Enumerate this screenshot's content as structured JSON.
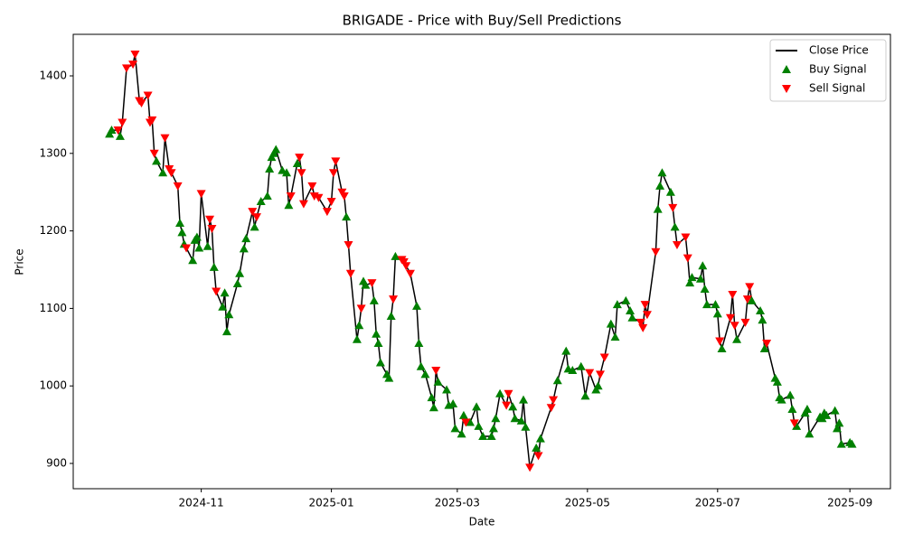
{
  "chart_data": {
    "type": "line",
    "title": "BRIGADE - Price with Buy/Sell Predictions",
    "x_label": "Date",
    "y_label": "Price",
    "xlim": [
      "2024-09-02",
      "2025-09-20"
    ],
    "xticks": [
      {
        "value": "2024-11-01",
        "label": "2024-11"
      },
      {
        "value": "2025-01-01",
        "label": "2025-01"
      },
      {
        "value": "2025-03-01",
        "label": "2025-03"
      },
      {
        "value": "2025-05-01",
        "label": "2025-05"
      },
      {
        "value": "2025-07-01",
        "label": "2025-07"
      },
      {
        "value": "2025-09-01",
        "label": "2025-09"
      }
    ],
    "ylim": [
      867.4,
      1453.6
    ],
    "yticks": [
      900,
      1000,
      1100,
      1200,
      1300,
      1400
    ],
    "grid": false,
    "legend": "upper right",
    "series": [
      {
        "name": "Close Price",
        "color": "#000000",
        "marker": "none",
        "x": [
          "2024-09-19",
          "2024-09-20",
          "2024-09-23",
          "2024-09-24",
          "2024-09-25",
          "2024-09-27",
          "2024-09-30",
          "2024-10-01",
          "2024-10-03",
          "2024-10-04",
          "2024-10-07",
          "2024-10-08",
          "2024-10-09",
          "2024-10-10",
          "2024-10-11",
          "2024-10-14",
          "2024-10-15",
          "2024-10-17",
          "2024-10-18",
          "2024-10-21",
          "2024-10-22",
          "2024-10-23",
          "2024-10-24",
          "2024-10-25",
          "2024-10-28",
          "2024-10-29",
          "2024-10-30",
          "2024-10-31",
          "2024-11-01",
          "2024-11-04",
          "2024-11-05",
          "2024-11-06",
          "2024-11-07",
          "2024-11-08",
          "2024-11-11",
          "2024-11-12",
          "2024-11-13",
          "2024-11-14",
          "2024-11-18",
          "2024-11-19",
          "2024-11-21",
          "2024-11-22",
          "2024-11-25",
          "2024-11-26",
          "2024-11-27",
          "2024-11-29",
          "2024-12-02",
          "2024-12-03",
          "2024-12-04",
          "2024-12-05",
          "2024-12-06",
          "2024-12-09",
          "2024-12-11",
          "2024-12-12",
          "2024-12-13",
          "2024-12-16",
          "2024-12-17",
          "2024-12-18",
          "2024-12-19",
          "2024-12-23",
          "2024-12-24",
          "2024-12-26",
          "2024-12-30",
          "2025-01-01",
          "2025-01-02",
          "2025-01-03",
          "2025-01-06",
          "2025-01-07",
          "2025-01-08",
          "2025-01-09",
          "2025-01-10",
          "2025-01-13",
          "2025-01-14",
          "2025-01-15",
          "2025-01-16",
          "2025-01-17",
          "2025-01-20",
          "2025-01-21",
          "2025-01-22",
          "2025-01-23",
          "2025-01-24",
          "2025-01-27",
          "2025-01-28",
          "2025-01-29",
          "2025-01-30",
          "2025-01-31",
          "2025-02-03",
          "2025-02-04",
          "2025-02-05",
          "2025-02-07",
          "2025-02-10",
          "2025-02-11",
          "2025-02-12",
          "2025-02-14",
          "2025-02-17",
          "2025-02-18",
          "2025-02-19",
          "2025-02-20",
          "2025-02-24",
          "2025-02-25",
          "2025-02-27",
          "2025-02-28",
          "2025-03-03",
          "2025-03-04",
          "2025-03-05",
          "2025-03-07",
          "2025-03-10",
          "2025-03-11",
          "2025-03-13",
          "2025-03-17",
          "2025-03-18",
          "2025-03-19",
          "2025-03-21",
          "2025-03-24",
          "2025-03-25",
          "2025-03-27",
          "2025-03-28",
          "2025-03-31",
          "2025-04-01",
          "2025-04-02",
          "2025-04-04",
          "2025-04-07",
          "2025-04-08",
          "2025-04-09",
          "2025-04-14",
          "2025-04-15",
          "2025-04-17",
          "2025-04-21",
          "2025-04-22",
          "2025-04-24",
          "2025-04-28",
          "2025-04-30",
          "2025-05-02",
          "2025-05-05",
          "2025-05-06",
          "2025-05-07",
          "2025-05-09",
          "2025-05-12",
          "2025-05-14",
          "2025-05-15",
          "2025-05-19",
          "2025-05-21",
          "2025-05-22",
          "2025-05-26",
          "2025-05-27",
          "2025-05-28",
          "2025-05-29",
          "2025-06-02",
          "2025-06-03",
          "2025-06-04",
          "2025-06-05",
          "2025-06-09",
          "2025-06-10",
          "2025-06-11",
          "2025-06-12",
          "2025-06-16",
          "2025-06-17",
          "2025-06-18",
          "2025-06-19",
          "2025-06-23",
          "2025-06-24",
          "2025-06-25",
          "2025-06-26",
          "2025-06-30",
          "2025-07-01",
          "2025-07-02",
          "2025-07-03",
          "2025-07-07",
          "2025-07-08",
          "2025-07-09",
          "2025-07-10",
          "2025-07-14",
          "2025-07-15",
          "2025-07-16",
          "2025-07-17",
          "2025-07-21",
          "2025-07-22",
          "2025-07-23",
          "2025-07-24",
          "2025-07-28",
          "2025-07-29",
          "2025-07-30",
          "2025-07-31",
          "2025-08-04",
          "2025-08-05",
          "2025-08-06",
          "2025-08-07",
          "2025-08-11",
          "2025-08-12",
          "2025-08-13",
          "2025-08-18",
          "2025-08-19",
          "2025-08-20",
          "2025-08-21",
          "2025-08-25",
          "2025-08-26",
          "2025-08-27",
          "2025-08-28",
          "2025-09-01",
          "2025-09-02"
        ],
        "values": [
          1325,
          1330,
          1330,
          1322,
          1340,
          1410,
          1415,
          1428,
          1368,
          1365,
          1375,
          1340,
          1343,
          1300,
          1290,
          1275,
          1320,
          1280,
          1275,
          1258,
          1210,
          1198,
          1183,
          1178,
          1162,
          1188,
          1192,
          1178,
          1248,
          1180,
          1215,
          1203,
          1153,
          1122,
          1102,
          1120,
          1070,
          1092,
          1132,
          1145,
          1177,
          1190,
          1225,
          1205,
          1218,
          1238,
          1245,
          1280,
          1295,
          1300,
          1305,
          1278,
          1275,
          1233,
          1245,
          1287,
          1295,
          1275,
          1235,
          1258,
          1245,
          1243,
          1225,
          1238,
          1275,
          1290,
          1250,
          1245,
          1218,
          1182,
          1145,
          1060,
          1078,
          1100,
          1135,
          1130,
          1133,
          1110,
          1067,
          1055,
          1030,
          1015,
          1010,
          1090,
          1112,
          1167,
          1163,
          1160,
          1155,
          1145,
          1103,
          1055,
          1025,
          1015,
          985,
          972,
          1020,
          1005,
          995,
          975,
          977,
          945,
          938,
          962,
          953,
          953,
          973,
          948,
          935,
          935,
          945,
          958,
          990,
          975,
          990,
          973,
          958,
          955,
          982,
          947,
          895,
          920,
          910,
          932,
          972,
          982,
          1007,
          1045,
          1022,
          1020,
          1025,
          987,
          1017,
          995,
          1000,
          1015,
          1037,
          1080,
          1063,
          1105,
          1110,
          1097,
          1088,
          1082,
          1075,
          1105,
          1092,
          1173,
          1228,
          1258,
          1275,
          1250,
          1230,
          1205,
          1182,
          1192,
          1165,
          1133,
          1140,
          1138,
          1155,
          1125,
          1105,
          1105,
          1093,
          1058,
          1048,
          1088,
          1118,
          1078,
          1060,
          1082,
          1112,
          1128,
          1110,
          1097,
          1085,
          1048,
          1055,
          1010,
          1005,
          985,
          982,
          988,
          970,
          952,
          948,
          965,
          970,
          938,
          960,
          958,
          965,
          962,
          968,
          945,
          952,
          925,
          927,
          925
        ]
      },
      {
        "name": "Buy Signal",
        "color": "#008000",
        "marker": "^",
        "x": [
          "2024-09-19",
          "2024-09-20",
          "2024-09-24",
          "2024-10-11",
          "2024-10-14",
          "2024-10-22",
          "2024-10-23",
          "2024-10-24",
          "2024-10-28",
          "2024-10-29",
          "2024-10-30",
          "2024-10-31",
          "2024-11-04",
          "2024-11-07",
          "2024-11-11",
          "2024-11-12",
          "2024-11-13",
          "2024-11-14",
          "2024-11-18",
          "2024-11-19",
          "2024-11-21",
          "2024-11-22",
          "2024-11-26",
          "2024-11-29",
          "2024-12-02",
          "2024-12-03",
          "2024-12-04",
          "2024-12-05",
          "2024-12-06",
          "2024-12-09",
          "2024-12-11",
          "2024-12-12",
          "2024-12-16",
          "2025-01-08",
          "2025-01-13",
          "2025-01-14",
          "2025-01-16",
          "2025-01-17",
          "2025-01-21",
          "2025-01-22",
          "2025-01-23",
          "2025-01-24",
          "2025-01-27",
          "2025-01-28",
          "2025-01-29",
          "2025-01-31",
          "2025-02-10",
          "2025-02-11",
          "2025-02-12",
          "2025-02-14",
          "2025-02-17",
          "2025-02-18",
          "2025-02-20",
          "2025-02-24",
          "2025-02-25",
          "2025-02-27",
          "2025-02-28",
          "2025-03-03",
          "2025-03-04",
          "2025-03-07",
          "2025-03-10",
          "2025-03-11",
          "2025-03-13",
          "2025-03-17",
          "2025-03-18",
          "2025-03-19",
          "2025-03-21",
          "2025-03-27",
          "2025-03-28",
          "2025-03-31",
          "2025-04-01",
          "2025-04-02",
          "2025-04-07",
          "2025-04-09",
          "2025-04-17",
          "2025-04-21",
          "2025-04-22",
          "2025-04-24",
          "2025-04-28",
          "2025-04-30",
          "2025-05-05",
          "2025-05-06",
          "2025-05-12",
          "2025-05-14",
          "2025-05-15",
          "2025-05-19",
          "2025-05-21",
          "2025-05-22",
          "2025-06-03",
          "2025-06-04",
          "2025-06-05",
          "2025-06-09",
          "2025-06-11",
          "2025-06-18",
          "2025-06-19",
          "2025-06-23",
          "2025-06-24",
          "2025-06-25",
          "2025-06-26",
          "2025-06-30",
          "2025-07-01",
          "2025-07-03",
          "2025-07-10",
          "2025-07-17",
          "2025-07-21",
          "2025-07-22",
          "2025-07-23",
          "2025-07-28",
          "2025-07-29",
          "2025-07-30",
          "2025-07-31",
          "2025-08-04",
          "2025-08-05",
          "2025-08-07",
          "2025-08-11",
          "2025-08-12",
          "2025-08-13",
          "2025-08-18",
          "2025-08-19",
          "2025-08-20",
          "2025-08-21",
          "2025-08-25",
          "2025-08-26",
          "2025-08-27",
          "2025-08-28",
          "2025-09-01",
          "2025-09-02"
        ],
        "values": [
          1325,
          1330,
          1322,
          1290,
          1275,
          1210,
          1198,
          1183,
          1162,
          1188,
          1192,
          1178,
          1180,
          1153,
          1102,
          1120,
          1070,
          1092,
          1132,
          1145,
          1177,
          1190,
          1205,
          1238,
          1245,
          1280,
          1295,
          1300,
          1305,
          1278,
          1275,
          1233,
          1287,
          1218,
          1060,
          1078,
          1135,
          1130,
          1110,
          1067,
          1055,
          1030,
          1015,
          1010,
          1090,
          1167,
          1103,
          1055,
          1025,
          1015,
          985,
          972,
          1005,
          995,
          975,
          977,
          945,
          938,
          962,
          953,
          973,
          948,
          935,
          935,
          945,
          958,
          990,
          973,
          958,
          955,
          982,
          947,
          920,
          932,
          1007,
          1045,
          1022,
          1020,
          1025,
          987,
          995,
          1000,
          1080,
          1063,
          1105,
          1110,
          1097,
          1088,
          1228,
          1258,
          1275,
          1250,
          1205,
          1133,
          1140,
          1138,
          1155,
          1125,
          1105,
          1105,
          1093,
          1048,
          1060,
          1110,
          1097,
          1085,
          1048,
          1010,
          1005,
          985,
          982,
          988,
          970,
          948,
          965,
          970,
          938,
          960,
          958,
          965,
          962,
          968,
          945,
          952,
          925,
          927,
          925
        ]
      },
      {
        "name": "Sell Signal",
        "color": "#ff0000",
        "marker": "v",
        "x": [
          "2024-09-23",
          "2024-09-25",
          "2024-09-27",
          "2024-09-30",
          "2024-10-01",
          "2024-10-03",
          "2024-10-04",
          "2024-10-07",
          "2024-10-08",
          "2024-10-09",
          "2024-10-10",
          "2024-10-15",
          "2024-10-17",
          "2024-10-18",
          "2024-10-21",
          "2024-10-25",
          "2024-11-01",
          "2024-11-05",
          "2024-11-06",
          "2024-11-08",
          "2024-11-25",
          "2024-11-27",
          "2024-12-13",
          "2024-12-17",
          "2024-12-18",
          "2024-12-19",
          "2024-12-23",
          "2024-12-24",
          "2024-12-26",
          "2024-12-30",
          "2025-01-01",
          "2025-01-02",
          "2025-01-03",
          "2025-01-06",
          "2025-01-07",
          "2025-01-09",
          "2025-01-10",
          "2025-01-15",
          "2025-01-20",
          "2025-01-30",
          "2025-02-03",
          "2025-02-04",
          "2025-02-05",
          "2025-02-07",
          "2025-02-19",
          "2025-03-05",
          "2025-03-24",
          "2025-03-25",
          "2025-04-04",
          "2025-04-08",
          "2025-04-14",
          "2025-04-15",
          "2025-05-02",
          "2025-05-07",
          "2025-05-09",
          "2025-05-26",
          "2025-05-27",
          "2025-05-28",
          "2025-05-29",
          "2025-06-02",
          "2025-06-10",
          "2025-06-12",
          "2025-06-16",
          "2025-06-17",
          "2025-07-02",
          "2025-07-07",
          "2025-07-08",
          "2025-07-09",
          "2025-07-14",
          "2025-07-15",
          "2025-07-16",
          "2025-07-24",
          "2025-08-06"
        ],
        "values": [
          1330,
          1340,
          1410,
          1415,
          1428,
          1368,
          1365,
          1375,
          1340,
          1343,
          1300,
          1320,
          1280,
          1275,
          1258,
          1178,
          1248,
          1215,
          1203,
          1122,
          1225,
          1218,
          1245,
          1295,
          1275,
          1235,
          1258,
          1245,
          1243,
          1225,
          1238,
          1275,
          1290,
          1250,
          1245,
          1182,
          1145,
          1100,
          1133,
          1112,
          1163,
          1160,
          1155,
          1145,
          1020,
          953,
          975,
          990,
          895,
          910,
          972,
          982,
          1017,
          1015,
          1037,
          1082,
          1075,
          1105,
          1092,
          1173,
          1230,
          1182,
          1192,
          1165,
          1058,
          1088,
          1118,
          1078,
          1082,
          1112,
          1128,
          1055,
          952
        ]
      }
    ]
  }
}
